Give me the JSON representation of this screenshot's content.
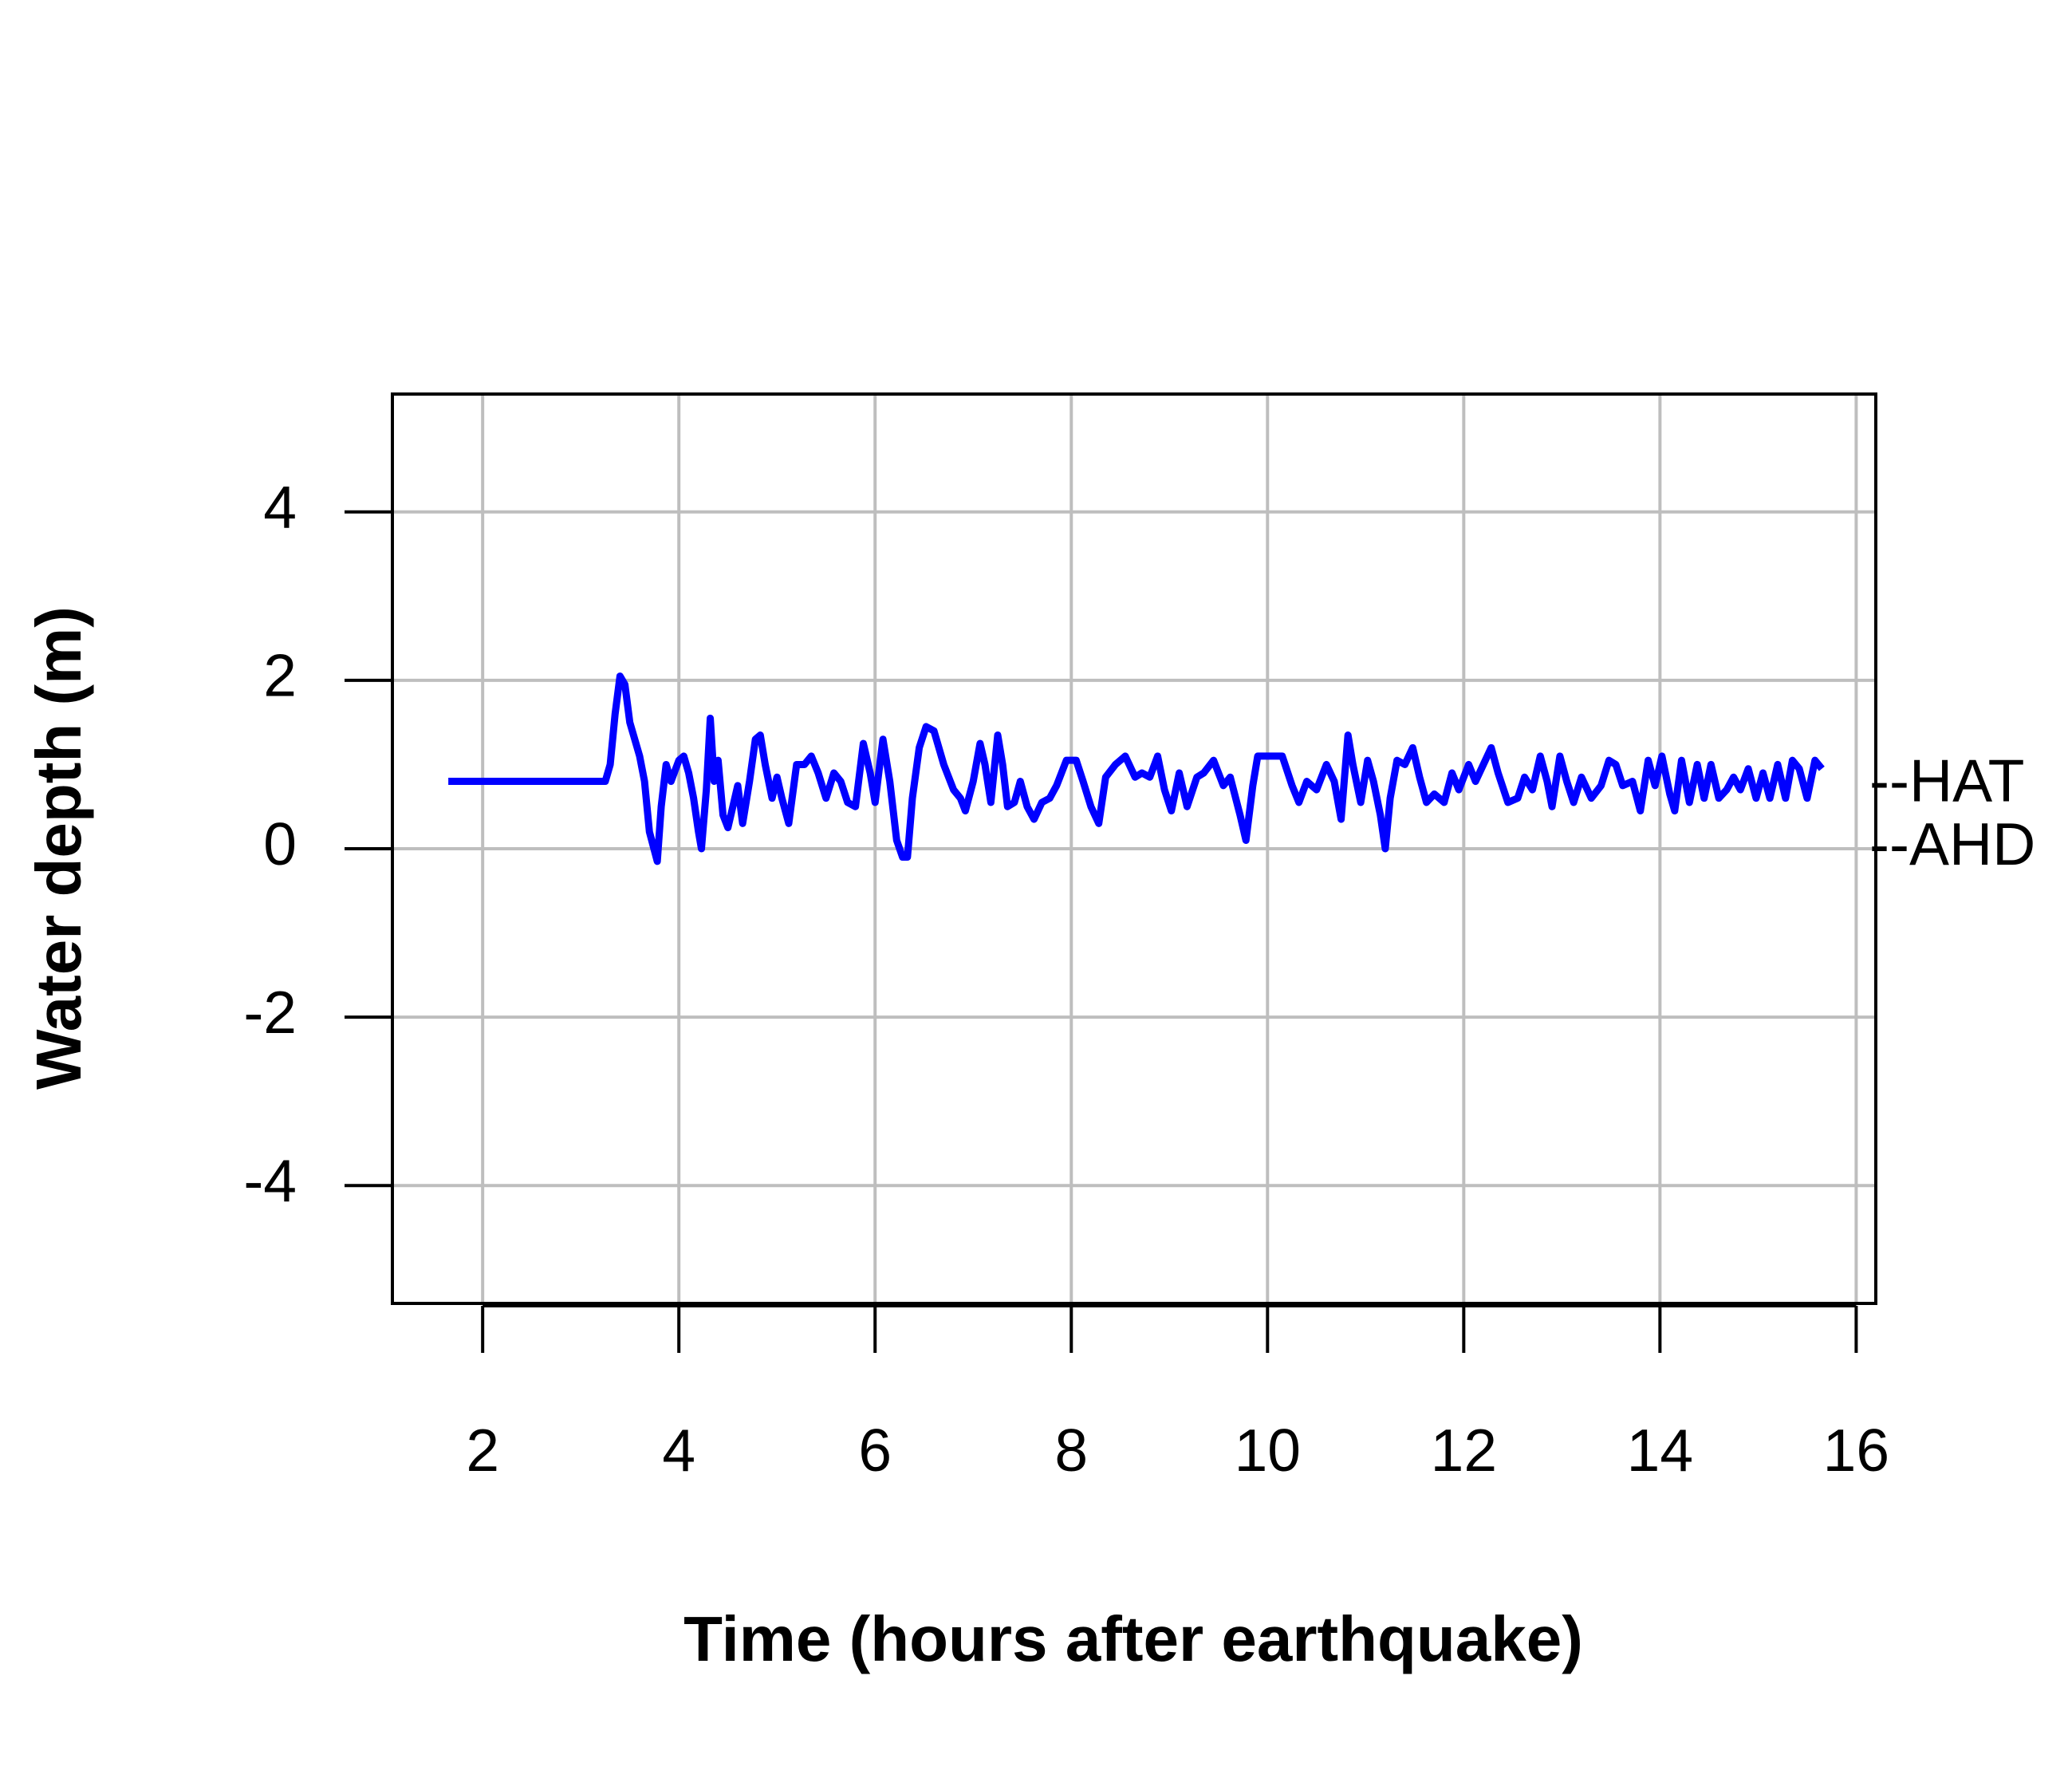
{
  "chart_data": {
    "type": "line",
    "xlabel": "Time (hours after earthquake)",
    "ylabel": "Water depth (m)",
    "x": [
      1.65,
      3.25,
      3.3,
      3.35,
      3.4,
      3.45,
      3.5,
      3.6,
      3.65,
      3.7,
      3.78,
      3.82,
      3.87,
      3.92,
      4.0,
      4.05,
      4.1,
      4.15,
      4.2,
      4.23,
      4.28,
      4.32,
      4.36,
      4.4,
      4.45,
      4.5,
      4.55,
      4.6,
      4.65,
      4.72,
      4.78,
      4.83,
      4.88,
      4.95,
      5.0,
      5.05,
      5.12,
      5.2,
      5.28,
      5.35,
      5.42,
      5.5,
      5.58,
      5.65,
      5.72,
      5.8,
      5.88,
      5.95,
      6.0,
      6.08,
      6.15,
      6.22,
      6.28,
      6.33,
      6.38,
      6.45,
      6.52,
      6.6,
      6.7,
      6.8,
      6.87,
      6.92,
      7.0,
      7.07,
      7.12,
      7.18,
      7.25,
      7.3,
      7.35,
      7.42,
      7.48,
      7.55,
      7.62,
      7.7,
      7.78,
      7.85,
      7.95,
      8.05,
      8.12,
      8.2,
      8.28,
      8.35,
      8.45,
      8.55,
      8.65,
      8.72,
      8.8,
      8.88,
      8.95,
      9.02,
      9.1,
      9.18,
      9.28,
      9.35,
      9.45,
      9.55,
      9.62,
      9.72,
      9.78,
      9.85,
      9.9,
      10.05,
      10.15,
      10.25,
      10.32,
      10.4,
      10.5,
      10.6,
      10.68,
      10.75,
      10.82,
      10.87,
      10.95,
      11.02,
      11.08,
      11.15,
      11.2,
      11.25,
      11.32,
      11.4,
      11.48,
      11.55,
      11.62,
      11.7,
      11.8,
      11.88,
      11.95,
      12.05,
      12.12,
      12.2,
      12.28,
      12.35,
      12.45,
      12.55,
      12.62,
      12.7,
      12.78,
      12.85,
      12.9,
      12.98,
      13.05,
      13.12,
      13.2,
      13.3,
      13.4,
      13.48,
      13.55,
      13.62,
      13.72,
      13.8,
      13.88,
      13.95,
      14.02,
      14.1,
      14.15,
      14.22,
      14.3,
      14.38,
      14.45,
      14.52,
      14.6,
      14.68,
      14.75,
      14.82,
      14.9,
      14.98,
      15.05,
      15.12,
      15.2,
      15.28,
      15.35,
      15.42,
      15.5,
      15.58,
      15.65
    ],
    "series": [
      {
        "color": "#0000ff",
        "values": [
          0.8,
          0.8,
          1.0,
          1.6,
          2.05,
          1.95,
          1.5,
          1.1,
          0.8,
          0.2,
          -0.15,
          0.5,
          1.0,
          0.8,
          1.05,
          1.1,
          0.9,
          0.6,
          0.2,
          0.0,
          0.7,
          1.55,
          0.8,
          1.05,
          0.4,
          0.25,
          0.5,
          0.75,
          0.3,
          0.8,
          1.3,
          1.35,
          1.0,
          0.6,
          0.85,
          0.6,
          0.3,
          1.0,
          1.0,
          1.1,
          0.9,
          0.6,
          0.9,
          0.8,
          0.55,
          0.5,
          1.25,
          0.9,
          0.55,
          1.3,
          0.8,
          0.1,
          -0.1,
          -0.1,
          0.6,
          1.2,
          1.45,
          1.4,
          1.0,
          0.7,
          0.6,
          0.45,
          0.8,
          1.25,
          1.0,
          0.55,
          1.35,
          1.0,
          0.5,
          0.55,
          0.8,
          0.5,
          0.35,
          0.55,
          0.6,
          0.75,
          1.05,
          1.05,
          0.8,
          0.5,
          0.3,
          0.85,
          1.0,
          1.1,
          0.85,
          0.9,
          0.85,
          1.1,
          0.7,
          0.45,
          0.9,
          0.5,
          0.85,
          0.9,
          1.05,
          0.75,
          0.85,
          0.4,
          0.1,
          0.75,
          1.1,
          1.1,
          1.1,
          0.75,
          0.55,
          0.8,
          0.7,
          1.0,
          0.8,
          0.35,
          1.35,
          1.0,
          0.55,
          1.05,
          0.8,
          0.4,
          0.0,
          0.6,
          1.05,
          1.0,
          1.2,
          0.85,
          0.55,
          0.65,
          0.55,
          0.9,
          0.7,
          1.0,
          0.8,
          1.0,
          1.2,
          0.9,
          0.55,
          0.6,
          0.85,
          0.7,
          1.1,
          0.8,
          0.5,
          1.1,
          0.8,
          0.55,
          0.85,
          0.6,
          0.75,
          1.05,
          1.0,
          0.75,
          0.8,
          0.45,
          1.05,
          0.75,
          1.1,
          0.65,
          0.45,
          1.05,
          0.55,
          1.0,
          0.6,
          1.0,
          0.6,
          0.7,
          0.85,
          0.7,
          0.95,
          0.6,
          0.9,
          0.6,
          1.0,
          0.6,
          1.05,
          0.95,
          0.6,
          1.05,
          0.95
        ]
      }
    ],
    "annotations": [
      {
        "text": "--HAT",
        "y": 0.75
      },
      {
        "text": "--AHD",
        "y": 0
      }
    ],
    "xlim": [
      1.08,
      16.2
    ],
    "ylim": [
      -5.4,
      5.4
    ],
    "xticks": [
      2,
      4,
      6,
      8,
      10,
      12,
      14,
      16
    ],
    "yticks": [
      -4,
      -2,
      0,
      2,
      4
    ],
    "grid": true
  }
}
